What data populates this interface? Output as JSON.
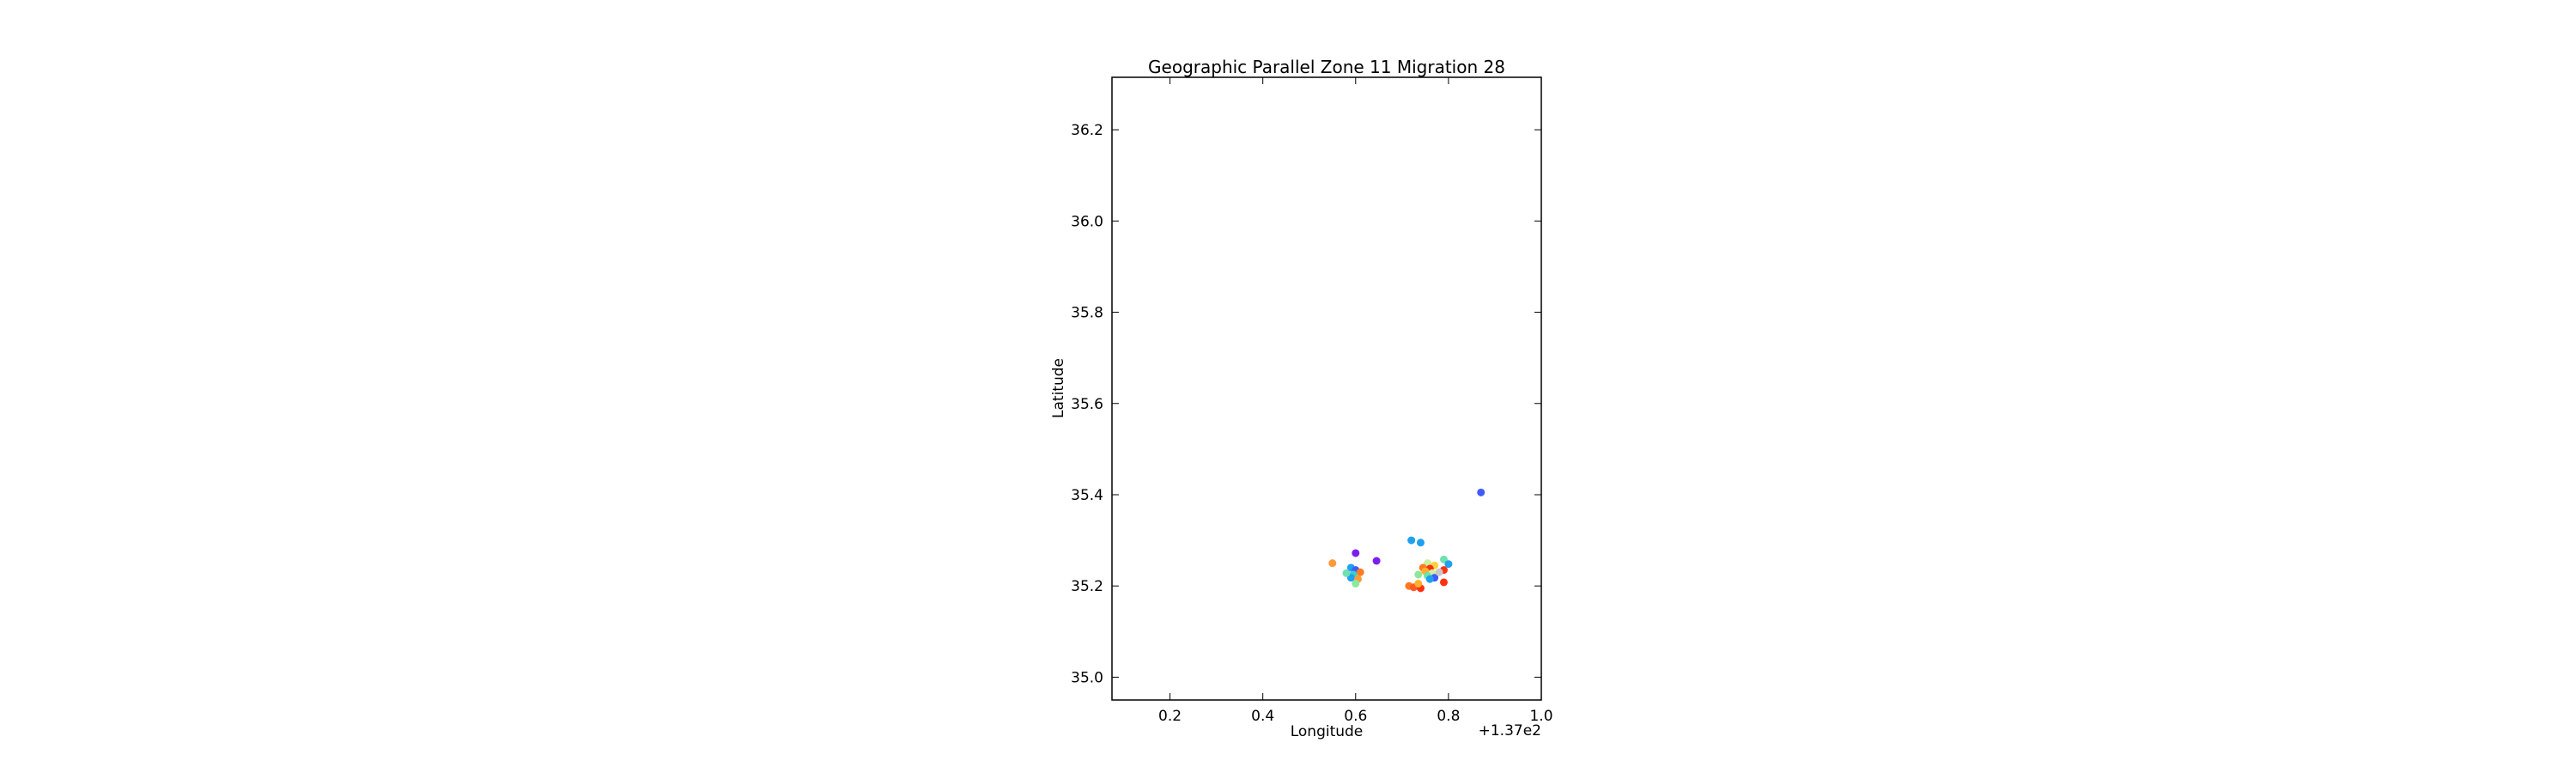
{
  "chart_data": {
    "type": "scatter",
    "title": "Geographic Parallel Zone 11 Migration 28",
    "xlabel": "Longitude",
    "ylabel": "Latitude",
    "x_offset_label": "+1.37e2",
    "xlim": [
      0.075,
      1.0
    ],
    "ylim": [
      34.95,
      36.315
    ],
    "x_ticks": [
      0.2,
      0.4,
      0.6,
      0.8,
      1.0
    ],
    "x_tick_labels": [
      "0.2",
      "0.4",
      "0.6",
      "0.8",
      "1.0"
    ],
    "y_ticks": [
      35.0,
      35.2,
      35.4,
      35.6,
      35.8,
      36.0,
      36.2
    ],
    "y_tick_labels": [
      "35.0",
      "35.2",
      "35.4",
      "35.6",
      "35.8",
      "36.0",
      "36.2"
    ],
    "grid": false,
    "points": [
      {
        "x": 0.87,
        "y": 35.405,
        "color": "#3f5bff"
      },
      {
        "x": 0.72,
        "y": 35.3,
        "color": "#1fa0f0"
      },
      {
        "x": 0.74,
        "y": 35.295,
        "color": "#1fa0f0"
      },
      {
        "x": 0.6,
        "y": 35.272,
        "color": "#7b1ff0"
      },
      {
        "x": 0.645,
        "y": 35.255,
        "color": "#7b1ff0"
      },
      {
        "x": 0.55,
        "y": 35.25,
        "color": "#ff9a3a"
      },
      {
        "x": 0.59,
        "y": 35.24,
        "color": "#1fa0f0"
      },
      {
        "x": 0.6,
        "y": 35.235,
        "color": "#3f5bff"
      },
      {
        "x": 0.61,
        "y": 35.23,
        "color": "#ff7a20"
      },
      {
        "x": 0.595,
        "y": 35.225,
        "color": "#38d0c8"
      },
      {
        "x": 0.59,
        "y": 35.218,
        "color": "#1fa0f0"
      },
      {
        "x": 0.605,
        "y": 35.215,
        "color": "#ff9a3a"
      },
      {
        "x": 0.6,
        "y": 35.205,
        "color": "#8ee89a"
      },
      {
        "x": 0.58,
        "y": 35.228,
        "color": "#6fe0b0"
      },
      {
        "x": 0.79,
        "y": 35.258,
        "color": "#6fe0b0"
      },
      {
        "x": 0.8,
        "y": 35.248,
        "color": "#1fa0f0"
      },
      {
        "x": 0.755,
        "y": 35.25,
        "color": "#c8f0a0"
      },
      {
        "x": 0.77,
        "y": 35.245,
        "color": "#ffd040"
      },
      {
        "x": 0.745,
        "y": 35.24,
        "color": "#ff7a20"
      },
      {
        "x": 0.76,
        "y": 35.238,
        "color": "#ff3010"
      },
      {
        "x": 0.79,
        "y": 35.235,
        "color": "#ff3010"
      },
      {
        "x": 0.75,
        "y": 35.232,
        "color": "#ffb030"
      },
      {
        "x": 0.765,
        "y": 35.228,
        "color": "#d0f0a0"
      },
      {
        "x": 0.735,
        "y": 35.225,
        "color": "#8ee89a"
      },
      {
        "x": 0.755,
        "y": 35.222,
        "color": "#6fe0b0"
      },
      {
        "x": 0.77,
        "y": 35.218,
        "color": "#3f5bff"
      },
      {
        "x": 0.78,
        "y": 35.23,
        "color": "#c8c8c8"
      },
      {
        "x": 0.76,
        "y": 35.215,
        "color": "#1fa0f0"
      },
      {
        "x": 0.79,
        "y": 35.208,
        "color": "#ff3010"
      },
      {
        "x": 0.715,
        "y": 35.2,
        "color": "#ff7a20"
      },
      {
        "x": 0.725,
        "y": 35.197,
        "color": "#ff5a20"
      },
      {
        "x": 0.74,
        "y": 35.195,
        "color": "#ff3010"
      },
      {
        "x": 0.735,
        "y": 35.205,
        "color": "#ffb030"
      }
    ]
  }
}
